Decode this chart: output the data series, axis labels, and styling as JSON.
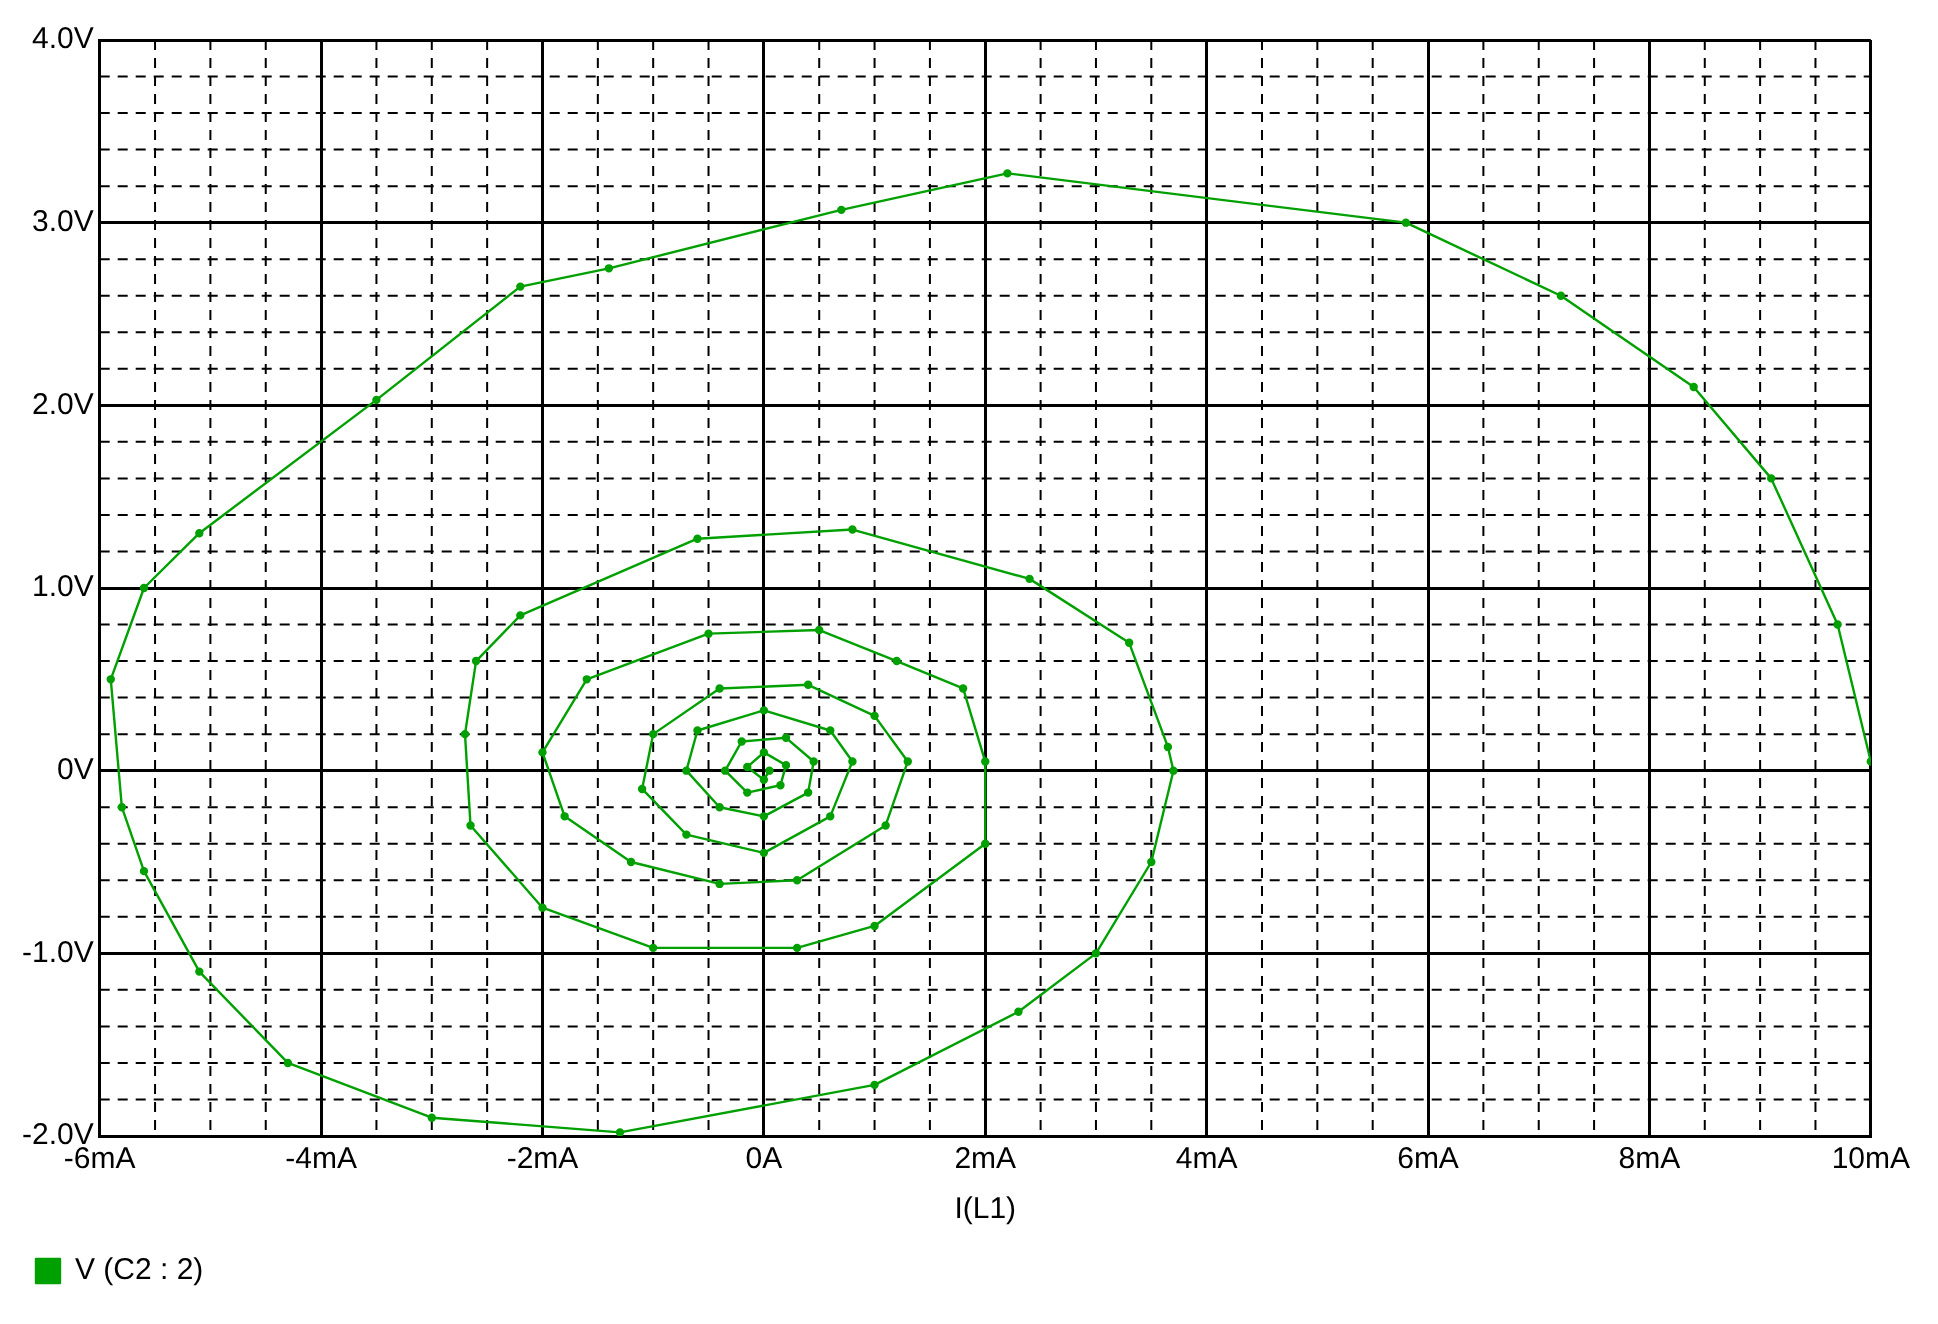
{
  "chart_data": {
    "type": "line",
    "xlabel": "I(L1)",
    "legend": "bottom left",
    "grid": true,
    "marker": "circle",
    "line_style": "solid",
    "xlim": [
      -6,
      10
    ],
    "ylim": [
      -2,
      4
    ],
    "xticks": [
      {
        "value": -6,
        "label": "-6mA"
      },
      {
        "value": -4,
        "label": "-4mA"
      },
      {
        "value": -2,
        "label": "-2mA"
      },
      {
        "value": 0,
        "label": "0A"
      },
      {
        "value": 2,
        "label": "2mA"
      },
      {
        "value": 4,
        "label": "4mA"
      },
      {
        "value": 6,
        "label": "6mA"
      },
      {
        "value": 8,
        "label": "8mA"
      },
      {
        "value": 10,
        "label": "10mA"
      }
    ],
    "yticks": [
      {
        "value": -2,
        "label": "-2.0V"
      },
      {
        "value": -1,
        "label": "-1.0V"
      },
      {
        "value": 0,
        "label": "0V"
      },
      {
        "value": 1,
        "label": "1.0V"
      },
      {
        "value": 2,
        "label": "2.0V"
      },
      {
        "value": 3,
        "label": "3.0V"
      },
      {
        "value": 4,
        "label": "4.0V"
      }
    ],
    "series": [
      {
        "name": "V (C2 : 2)",
        "color": "#00a000",
        "x": [
          10,
          9.7,
          9.1,
          8.4,
          7.2,
          5.8,
          2.2,
          0.7,
          -1.4,
          -2.2,
          -3.5,
          -5.1,
          -5.6,
          -5.9,
          -5.8,
          -5.6,
          -5.1,
          -4.3,
          -3,
          -1.3,
          1.0,
          2.3,
          3.0,
          3.5,
          3.7,
          3.65,
          3.3,
          2.4,
          0.8,
          -0.6,
          -2.2,
          -2.6,
          -2.7,
          -2.65,
          -2,
          -1,
          0.3,
          1.0,
          2.0,
          2.0,
          1.8,
          1.2,
          0.5,
          -0.5,
          -1.6,
          -2.0,
          -1.8,
          -1.2,
          -0.4,
          0.3,
          1.1,
          1.3,
          1.0,
          0.4,
          -0.4,
          -1.0,
          -1.1,
          -0.7,
          0,
          0.6,
          0.8,
          0.6,
          0,
          -0.6,
          -0.7,
          -0.4,
          0,
          0.4,
          0.45,
          0.2,
          -0.2,
          -0.35,
          -0.15,
          0.15,
          0.2,
          0,
          -0.15,
          0,
          0.05
        ],
        "values": [
          0.05,
          0.8,
          1.6,
          2.1,
          2.6,
          3.0,
          3.27,
          3.07,
          2.75,
          2.65,
          2.03,
          1.3,
          1.0,
          0.5,
          -0.2,
          -0.55,
          -1.1,
          -1.6,
          -1.9,
          -1.98,
          -1.72,
          -1.32,
          -1.0,
          -0.5,
          0.0,
          0.13,
          0.7,
          1.05,
          1.32,
          1.27,
          0.85,
          0.6,
          0.2,
          -0.3,
          -0.75,
          -0.97,
          -0.97,
          -0.85,
          -0.4,
          0.05,
          0.45,
          0.6,
          0.77,
          0.75,
          0.5,
          0.1,
          -0.25,
          -0.5,
          -0.62,
          -0.6,
          -0.3,
          0.05,
          0.3,
          0.47,
          0.45,
          0.2,
          -0.1,
          -0.35,
          -0.45,
          -0.25,
          0.05,
          0.22,
          0.33,
          0.22,
          0,
          -0.2,
          -0.25,
          -0.12,
          0.05,
          0.18,
          0.16,
          0,
          -0.12,
          -0.08,
          0.03,
          0.1,
          0.02,
          -0.05,
          0
        ]
      }
    ]
  }
}
